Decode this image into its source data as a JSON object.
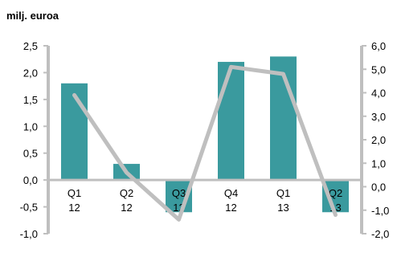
{
  "chart_data": {
    "type": "bar+line",
    "unit_label": "milj. euroa",
    "categories": [
      {
        "top": "Q1",
        "bottom": "12"
      },
      {
        "top": "Q2",
        "bottom": "12"
      },
      {
        "top": "Q3",
        "bottom": "12"
      },
      {
        "top": "Q4",
        "bottom": "12"
      },
      {
        "top": "Q1",
        "bottom": "13"
      },
      {
        "top": "Q2",
        "bottom": "13"
      }
    ],
    "series": [
      {
        "kind": "bar",
        "axis": "left",
        "color": "#3a9a9e",
        "values": [
          1.8,
          0.3,
          -0.6,
          2.2,
          2.3,
          -0.6
        ]
      },
      {
        "kind": "line",
        "axis": "right",
        "color": "#bfbfbf",
        "values": [
          3.9,
          0.6,
          -1.4,
          5.1,
          4.8,
          -1.2
        ]
      }
    ],
    "y_left": {
      "min": -1.0,
      "max": 2.5,
      "ticks": [
        "-1,0",
        "-0,5",
        "0,0",
        "0,5",
        "1,0",
        "1,5",
        "2,0",
        "2,5"
      ]
    },
    "y_right": {
      "min": -2.0,
      "max": 6.0,
      "ticks": [
        "-2,0",
        "-1,0",
        "0,0",
        "1,0",
        "2,0",
        "3,0",
        "4,0",
        "5,0",
        "6,0"
      ]
    },
    "grid": false,
    "legend": "none"
  }
}
